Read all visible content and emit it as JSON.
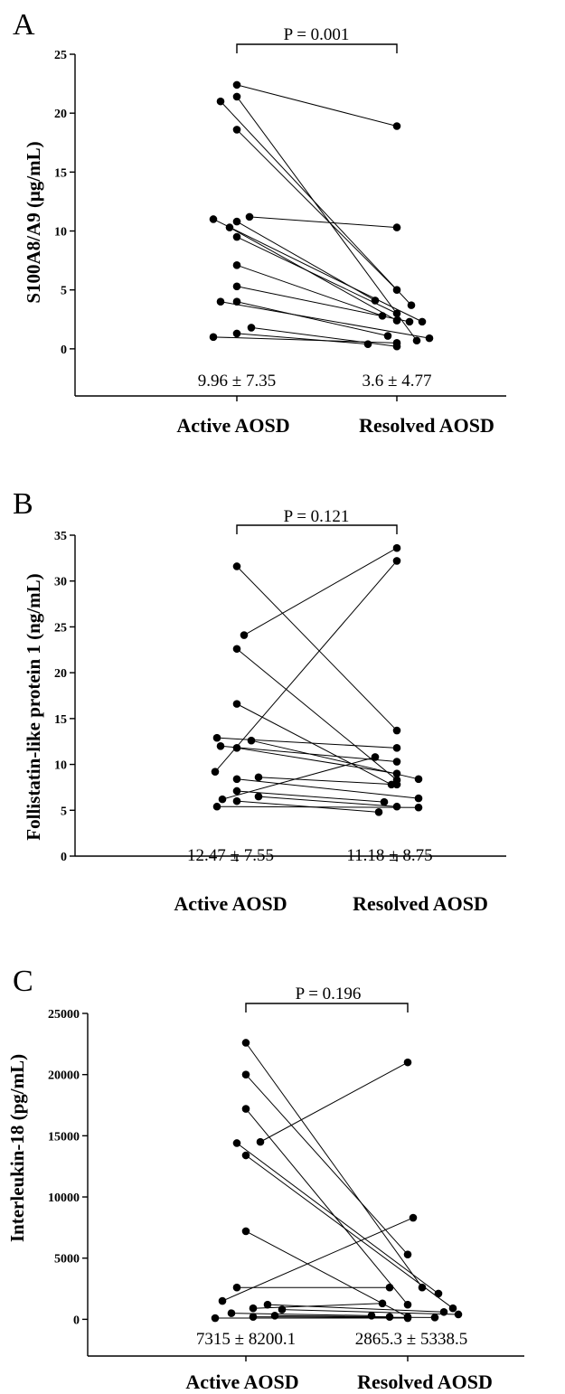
{
  "chart_data": [
    {
      "panel": "A",
      "type": "scatter",
      "ylabel": "S100A8/A9 (μg/mL)",
      "categories": [
        "Active AOSD",
        "Resolved AOSD"
      ],
      "ylim": [
        -4,
        25
      ],
      "yticks": [
        0,
        5,
        10,
        15,
        20,
        25
      ],
      "p_value_label": "P = 0.001",
      "summary": [
        "9.96 ± 7.35",
        "3.6 ± 4.77"
      ],
      "pairs": [
        {
          "active": 22.4,
          "resolved": 18.9,
          "ao": 0,
          "ro": 0
        },
        {
          "active": 21.4,
          "resolved": 0.7,
          "ao": 0,
          "ro": 22
        },
        {
          "active": 21.0,
          "resolved": 3.7,
          "ao": -18,
          "ro": 16
        },
        {
          "active": 18.6,
          "resolved": 5.0,
          "ao": 0,
          "ro": 0
        },
        {
          "active": 11.2,
          "resolved": 10.3,
          "ao": 14,
          "ro": 0
        },
        {
          "active": 11.0,
          "resolved": 2.3,
          "ao": -26,
          "ro": 28
        },
        {
          "active": 10.8,
          "resolved": 4.1,
          "ao": 0,
          "ro": -24
        },
        {
          "active": 10.3,
          "resolved": 2.4,
          "ao": -8,
          "ro": 0
        },
        {
          "active": 9.5,
          "resolved": 3.0,
          "ao": 0,
          "ro": 0
        },
        {
          "active": 7.1,
          "resolved": 2.8,
          "ao": 0,
          "ro": -16
        },
        {
          "active": 5.3,
          "resolved": 2.3,
          "ao": 0,
          "ro": 14
        },
        {
          "active": 4.0,
          "resolved": 0.9,
          "ao": -18,
          "ro": 36
        },
        {
          "active": 4.0,
          "resolved": 1.1,
          "ao": 0,
          "ro": -10
        },
        {
          "active": 1.8,
          "resolved": 0.2,
          "ao": 16,
          "ro": 0
        },
        {
          "active": 1.3,
          "resolved": 0.4,
          "ao": 0,
          "ro": -32
        },
        {
          "active": 1.0,
          "resolved": 0.5,
          "ao": -26,
          "ro": 0
        }
      ]
    },
    {
      "panel": "B",
      "type": "scatter",
      "ylabel": "Follistatin-like protein 1 (ng/mL)",
      "categories": [
        "Active AOSD",
        "Resolved AOSD"
      ],
      "ylim": [
        0,
        35
      ],
      "yticks": [
        0,
        5,
        10,
        15,
        20,
        25,
        30,
        35
      ],
      "p_value_label": "P = 0.121",
      "summary": [
        "12.47 ± 7.55",
        "11.18 ± 8.75"
      ],
      "pairs": [
        {
          "active": 31.6,
          "resolved": 13.7,
          "ao": 0,
          "ro": 0
        },
        {
          "active": 24.1,
          "resolved": 33.6,
          "ao": 8,
          "ro": 0
        },
        {
          "active": 22.6,
          "resolved": 8.3,
          "ao": 0,
          "ro": 0
        },
        {
          "active": 16.6,
          "resolved": 7.8,
          "ao": 0,
          "ro": -6
        },
        {
          "active": 12.9,
          "resolved": 11.8,
          "ao": -22,
          "ro": 0
        },
        {
          "active": 12.6,
          "resolved": 8.4,
          "ao": 16,
          "ro": 24
        },
        {
          "active": 12.0,
          "resolved": 10.3,
          "ao": -18,
          "ro": 0
        },
        {
          "active": 11.8,
          "resolved": 9.0,
          "ao": 0,
          "ro": 0
        },
        {
          "active": 9.2,
          "resolved": 32.2,
          "ao": -24,
          "ro": 0
        },
        {
          "active": 8.6,
          "resolved": 7.8,
          "ao": 24,
          "ro": 0
        },
        {
          "active": 8.4,
          "resolved": 6.3,
          "ao": 0,
          "ro": 24
        },
        {
          "active": 7.1,
          "resolved": 5.9,
          "ao": 0,
          "ro": -14
        },
        {
          "active": 6.5,
          "resolved": 5.4,
          "ao": 24,
          "ro": 0
        },
        {
          "active": 6.2,
          "resolved": 10.8,
          "ao": -16,
          "ro": -24
        },
        {
          "active": 6.0,
          "resolved": 4.8,
          "ao": 0,
          "ro": -20
        },
        {
          "active": 5.4,
          "resolved": 5.3,
          "ao": -22,
          "ro": 24
        }
      ]
    },
    {
      "panel": "C",
      "type": "scatter",
      "ylabel": "Interleukin-18 (pg/mL)",
      "categories": [
        "Active AOSD",
        "Resolved AOSD"
      ],
      "ylim": [
        -3000,
        25000
      ],
      "yticks": [
        0,
        5000,
        10000,
        15000,
        20000,
        25000
      ],
      "p_value_label": "P = 0.196",
      "summary": [
        "7315 ± 8200.1",
        "2865.3 ± 5338.5"
      ],
      "pairs": [
        {
          "active": 22600,
          "resolved": 2600,
          "ao": 0,
          "ro": 16
        },
        {
          "active": 20000,
          "resolved": 5300,
          "ao": 0,
          "ro": 0
        },
        {
          "active": 17200,
          "resolved": 1200,
          "ao": 0,
          "ro": 0
        },
        {
          "active": 14500,
          "resolved": 21000,
          "ao": 16,
          "ro": 0
        },
        {
          "active": 14400,
          "resolved": 2100,
          "ao": -10,
          "ro": 34
        },
        {
          "active": 13400,
          "resolved": 900,
          "ao": 0,
          "ro": 50
        },
        {
          "active": 7200,
          "resolved": 200,
          "ao": 0,
          "ro": 0
        },
        {
          "active": 2600,
          "resolved": 2600,
          "ao": -10,
          "ro": -20
        },
        {
          "active": 1500,
          "resolved": 8300,
          "ao": -26,
          "ro": 6
        },
        {
          "active": 1200,
          "resolved": 600,
          "ao": 24,
          "ro": 40
        },
        {
          "active": 900,
          "resolved": 1300,
          "ao": 8,
          "ro": -28
        },
        {
          "active": 800,
          "resolved": 400,
          "ao": 40,
          "ro": 56
        },
        {
          "active": 500,
          "resolved": 300,
          "ao": -16,
          "ro": -40
        },
        {
          "active": 300,
          "resolved": 200,
          "ao": 32,
          "ro": -20
        },
        {
          "active": 200,
          "resolved": 150,
          "ao": 8,
          "ro": 30
        },
        {
          "active": 100,
          "resolved": 100,
          "ao": -34,
          "ro": 0
        }
      ]
    }
  ]
}
